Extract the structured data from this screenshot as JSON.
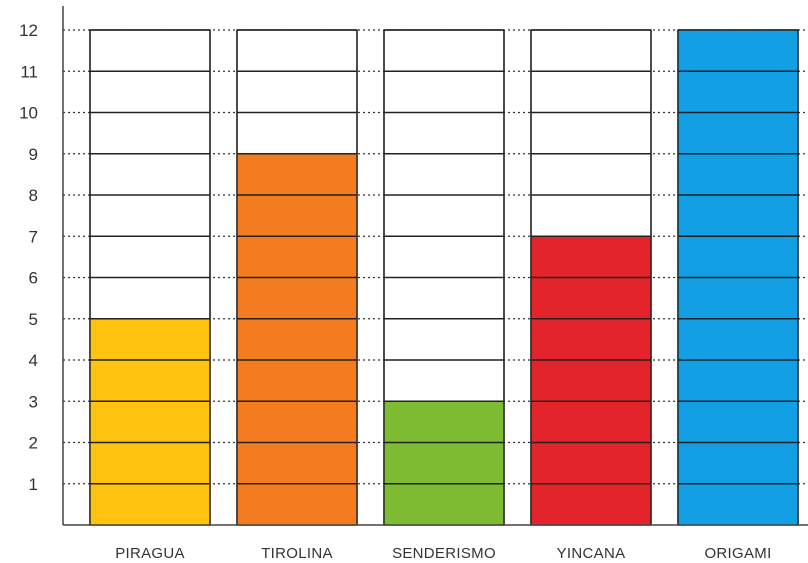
{
  "chart_data": {
    "type": "bar",
    "title": "",
    "xlabel": "",
    "ylabel": "",
    "categories": [
      "PIRAGUA",
      "TIROLINA",
      "SENDERISMO",
      "YINCANA",
      "ORIGAMI"
    ],
    "values": [
      5,
      9,
      3,
      7,
      12
    ],
    "colors": [
      "#FFC20E",
      "#F47C20",
      "#7DBB32",
      "#E3242B",
      "#139FE3"
    ],
    "ylim": [
      0,
      12
    ],
    "yticks": [
      "1",
      "2",
      "3",
      "4",
      "5",
      "6",
      "7",
      "8",
      "9",
      "10",
      "11",
      "12"
    ],
    "grid": true,
    "legend": "none"
  }
}
